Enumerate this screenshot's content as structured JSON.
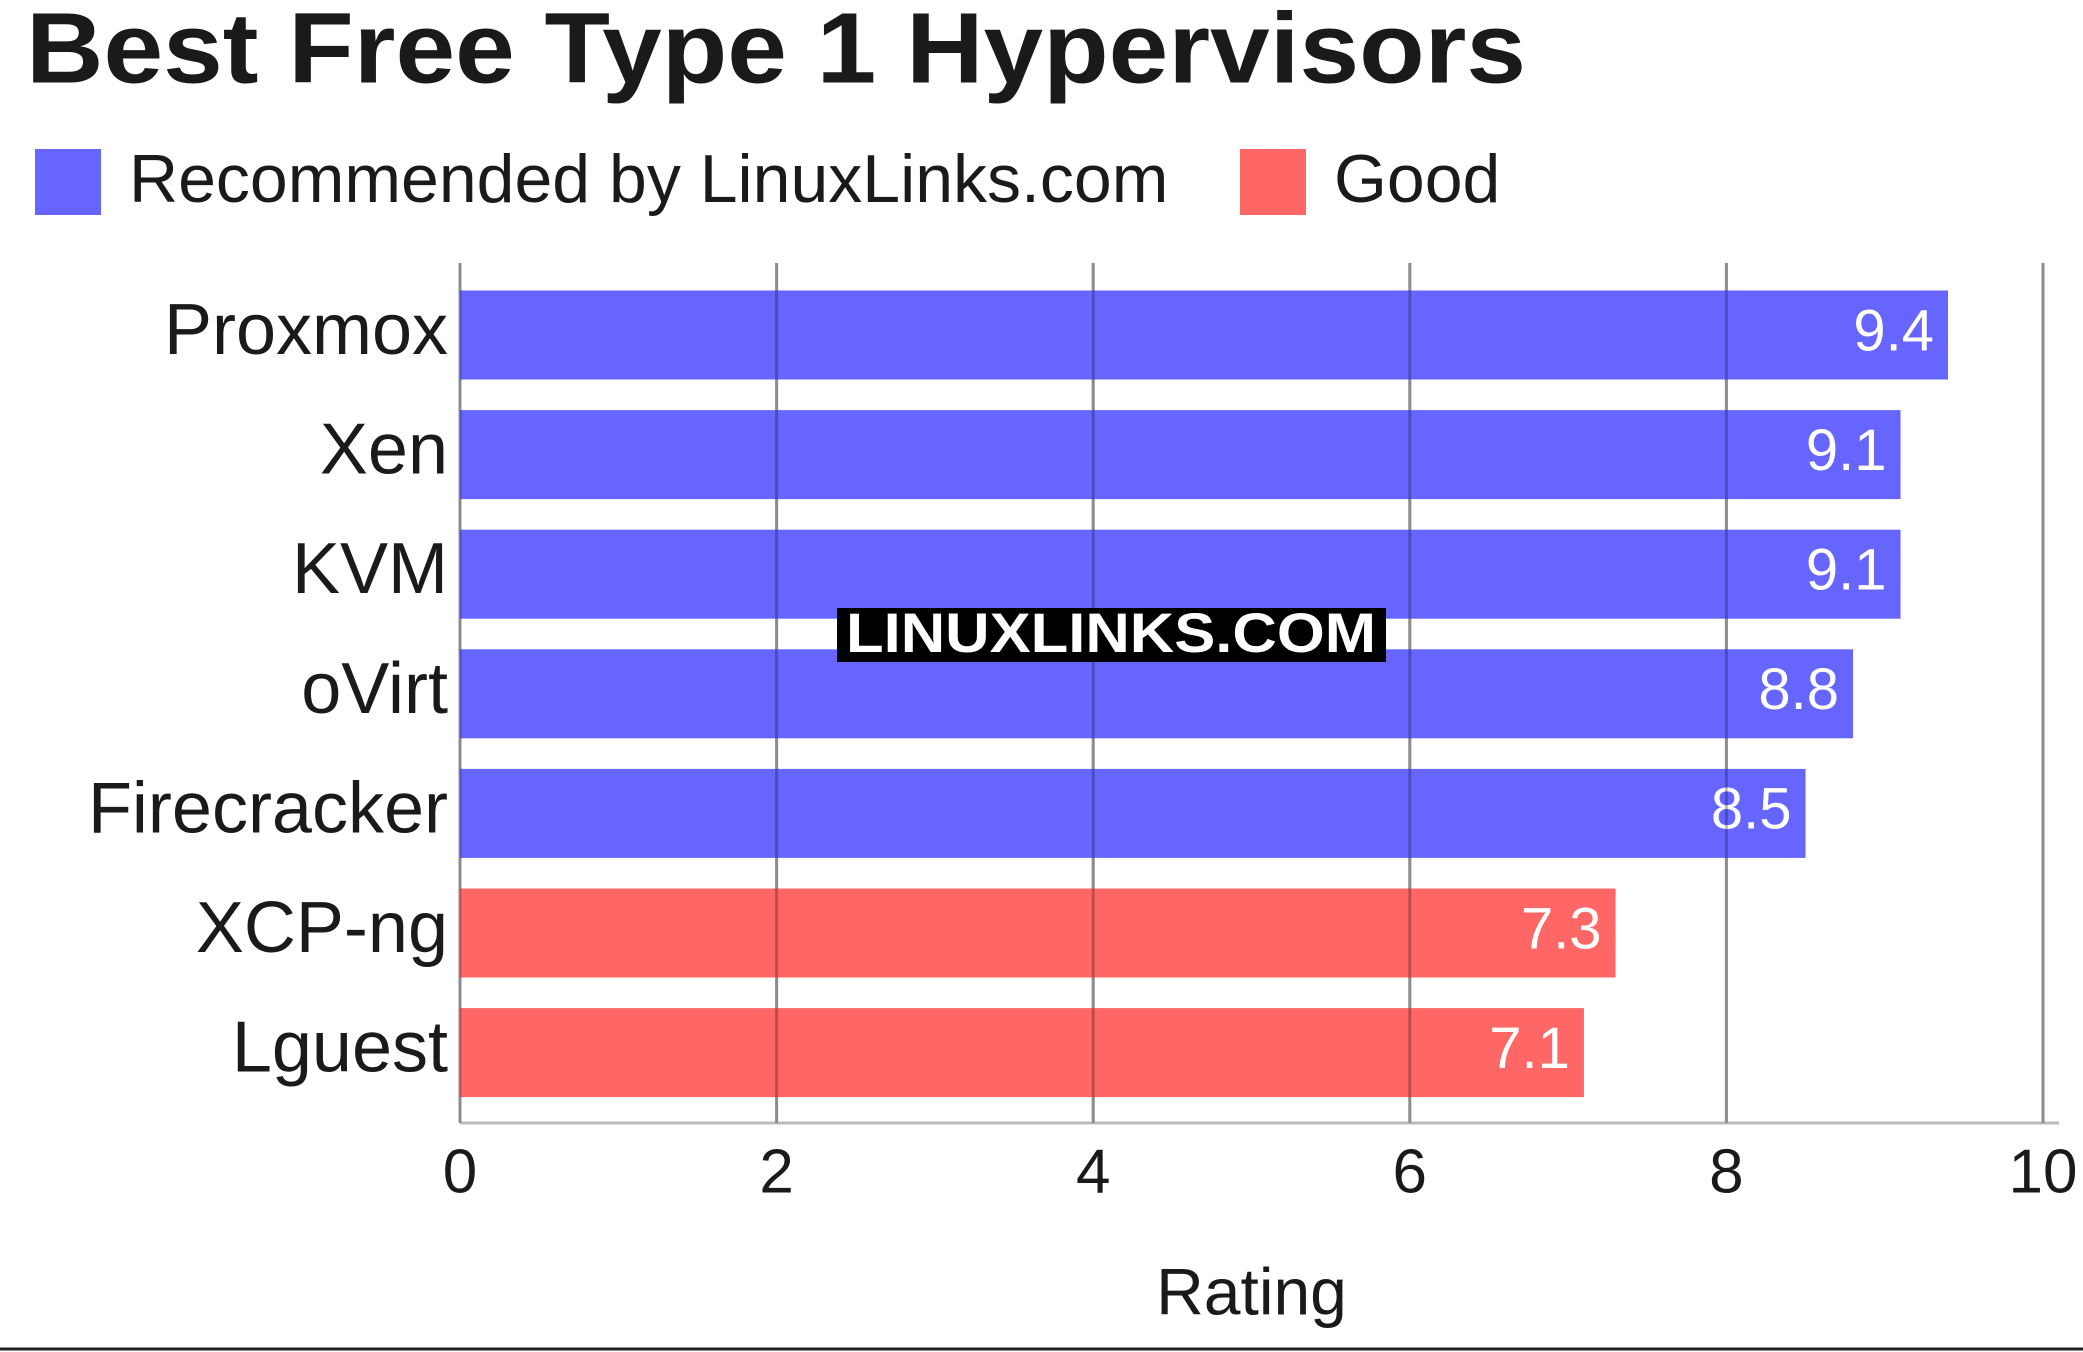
{
  "chart_data": {
    "type": "bar",
    "orientation": "horizontal",
    "title": "Best Free Type 1 Hypervisors",
    "categories": [
      "Proxmox",
      "Xen",
      "KVM",
      "oVirt",
      "Firecracker",
      "XCP-ng",
      "Lguest"
    ],
    "series": [
      {
        "name": "Recommended by LinuxLinks.com",
        "color": "#6666ff",
        "values": [
          9.4,
          9.1,
          9.1,
          8.8,
          8.5,
          null,
          null
        ]
      },
      {
        "name": "Good",
        "color": "#ff6666",
        "values": [
          null,
          null,
          null,
          null,
          null,
          7.3,
          7.1
        ]
      }
    ],
    "xlabel": "Rating",
    "xlim": [
      0,
      10
    ],
    "xticks": [
      0,
      2,
      4,
      6,
      8,
      10
    ],
    "grid": true,
    "watermark": "LINUXLINKS.COM"
  }
}
